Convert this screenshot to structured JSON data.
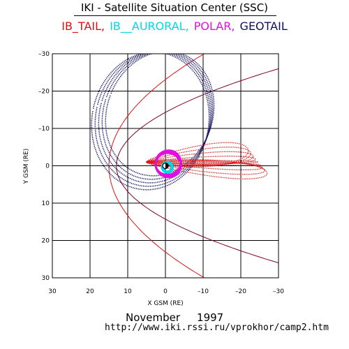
{
  "header": {
    "title": "IKI - Satellite Situation Center (SSC)"
  },
  "legend": [
    {
      "name": "IB_TAIL,",
      "color": "#e01010"
    },
    {
      "name": "IB__AURORAL,",
      "color": "#00d8e8"
    },
    {
      "name": "POLAR,",
      "color": "#e010e0"
    },
    {
      "name": "GEOTAIL",
      "color": "#101060"
    }
  ],
  "footer": {
    "month": "November",
    "year": "1997",
    "url": "http://www.iki.rssi.ru/vprokhor/camp2.htm"
  },
  "chart_data": {
    "type": "scatter",
    "title": "IKI - Satellite Situation Center (SSC)",
    "xlabel": "X GSM (RE)",
    "ylabel": "Y GSM (RE)",
    "xlim": [
      30,
      -30
    ],
    "ylim": [
      -30,
      30
    ],
    "xticks": [
      30,
      20,
      10,
      0,
      -10,
      -20,
      -30
    ],
    "yticks": [
      -30,
      -20,
      -10,
      0,
      10,
      20,
      30
    ],
    "xtick_labels": [
      "30",
      "20",
      "10",
      "0",
      "–10",
      "–20",
      "–30"
    ],
    "ytick_labels": [
      "–30",
      "–20",
      "–10",
      "0",
      "10",
      "20",
      "30"
    ],
    "grid": true,
    "boundaries": [
      {
        "kind": "magnetopause",
        "color": "#800030",
        "subsolar_x": 13,
        "flank_x": -30,
        "flank_y": 26
      },
      {
        "kind": "bow-shock",
        "color": "#e01010",
        "subsolar_x": 15,
        "flank_x": -30,
        "flank_y": 40
      }
    ],
    "series": [
      {
        "name": "GEOTAIL",
        "color": "#101060",
        "orbit": {
          "center": [
            3,
            -13
          ],
          "rx": [
            14,
            15.5
          ],
          "ry": [
            17,
            18.5
          ],
          "loops": 5
        }
      },
      {
        "name": "IB_TAIL",
        "color": "#e01010",
        "orbit": {
          "x_range": [
            6,
            -27
          ],
          "y_spread": [
            -10,
            6
          ],
          "loops": 9
        }
      },
      {
        "name": "POLAR",
        "color": "#e010e0",
        "orbit": {
          "x_range": [
            3,
            -5
          ],
          "y_range": [
            -4,
            3
          ]
        }
      },
      {
        "name": "IB__AURORAL",
        "color": "#00d8e8",
        "orbit": {
          "x_range": [
            2,
            -2
          ],
          "y_range": [
            -1.5,
            1.5
          ]
        }
      }
    ]
  }
}
